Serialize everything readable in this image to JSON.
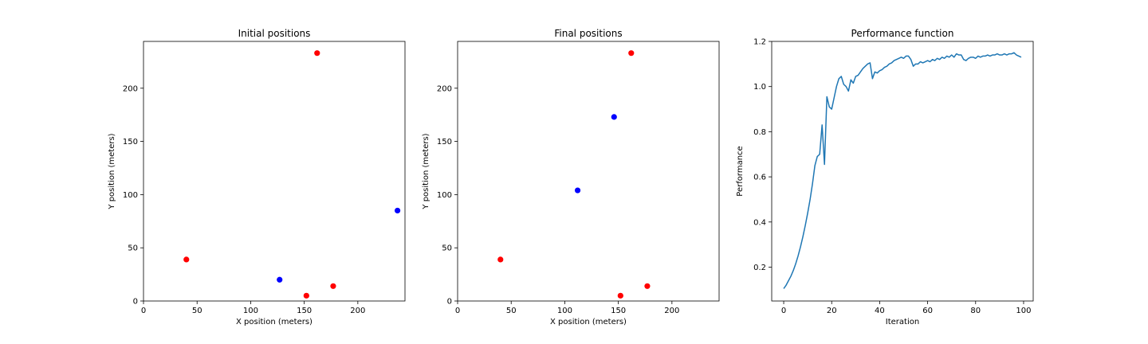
{
  "chart_data": [
    {
      "type": "scatter",
      "title": "Initial positions",
      "xlabel": "X position (meters)",
      "ylabel": "Y position (meters)",
      "xlim": [
        0,
        244
      ],
      "ylim": [
        0,
        244
      ],
      "xticks": [
        0,
        50,
        100,
        150,
        200
      ],
      "yticks": [
        0,
        50,
        100,
        150,
        200
      ],
      "grid": false,
      "series": [
        {
          "color": "#ff0000",
          "points": [
            [
              40,
              39
            ],
            [
              162,
              233
            ],
            [
              152,
              5
            ],
            [
              177,
              14
            ]
          ]
        },
        {
          "color": "#0000ff",
          "points": [
            [
              127,
              20
            ],
            [
              237,
              85
            ]
          ]
        }
      ]
    },
    {
      "type": "scatter",
      "title": "Final positions",
      "xlabel": "X position (meters)",
      "ylabel": "Y position (meters)",
      "xlim": [
        0,
        244
      ],
      "ylim": [
        0,
        244
      ],
      "xticks": [
        0,
        50,
        100,
        150,
        200
      ],
      "yticks": [
        0,
        50,
        100,
        150,
        200
      ],
      "grid": false,
      "series": [
        {
          "color": "#ff0000",
          "points": [
            [
              40,
              39
            ],
            [
              162,
              233
            ],
            [
              152,
              5
            ],
            [
              177,
              14
            ]
          ]
        },
        {
          "color": "#0000ff",
          "points": [
            [
              112,
              104
            ],
            [
              146,
              173
            ]
          ]
        }
      ]
    },
    {
      "type": "line",
      "title": "Performance function",
      "xlabel": "Iteration",
      "ylabel": "Performance",
      "xlim": [
        -5,
        104
      ],
      "ylim": [
        0.05,
        1.2
      ],
      "xticks": [
        0,
        20,
        40,
        60,
        80,
        100
      ],
      "yticks": [
        0.2,
        0.4,
        0.6,
        0.8,
        1.0,
        1.2
      ],
      "ytick_format": 1,
      "grid": false,
      "series": [
        {
          "color": "#1f77b4",
          "x": [
            0,
            1,
            2,
            3,
            4,
            5,
            6,
            7,
            8,
            9,
            10,
            11,
            12,
            13,
            14,
            15,
            16,
            17,
            18,
            19,
            20,
            21,
            22,
            23,
            24,
            25,
            26,
            27,
            28,
            29,
            30,
            31,
            32,
            33,
            34,
            35,
            36,
            37,
            38,
            39,
            40,
            41,
            42,
            43,
            44,
            45,
            46,
            47,
            48,
            49,
            50,
            51,
            52,
            53,
            54,
            55,
            56,
            57,
            58,
            59,
            60,
            61,
            62,
            63,
            64,
            65,
            66,
            67,
            68,
            69,
            70,
            71,
            72,
            73,
            74,
            75,
            76,
            77,
            78,
            79,
            80,
            81,
            82,
            83,
            84,
            85,
            86,
            87,
            88,
            89,
            90,
            91,
            92,
            93,
            94,
            95,
            96,
            97,
            98,
            99
          ],
          "y": [
            0.105,
            0.12,
            0.14,
            0.16,
            0.185,
            0.215,
            0.25,
            0.29,
            0.335,
            0.385,
            0.44,
            0.5,
            0.57,
            0.65,
            0.69,
            0.7,
            0.83,
            0.655,
            0.955,
            0.91,
            0.9,
            0.95,
            1.0,
            1.035,
            1.045,
            1.01,
            1.0,
            0.98,
            1.03,
            1.015,
            1.045,
            1.05,
            1.065,
            1.08,
            1.09,
            1.1,
            1.105,
            1.035,
            1.065,
            1.06,
            1.07,
            1.075,
            1.085,
            1.09,
            1.1,
            1.105,
            1.115,
            1.12,
            1.125,
            1.13,
            1.125,
            1.135,
            1.135,
            1.12,
            1.09,
            1.1,
            1.1,
            1.11,
            1.105,
            1.11,
            1.115,
            1.11,
            1.12,
            1.115,
            1.125,
            1.12,
            1.13,
            1.125,
            1.135,
            1.13,
            1.14,
            1.13,
            1.145,
            1.14,
            1.14,
            1.12,
            1.115,
            1.125,
            1.13,
            1.13,
            1.125,
            1.135,
            1.13,
            1.135,
            1.135,
            1.14,
            1.135,
            1.14,
            1.14,
            1.145,
            1.14,
            1.14,
            1.145,
            1.14,
            1.145,
            1.145,
            1.15,
            1.14,
            1.135,
            1.13
          ]
        }
      ]
    }
  ]
}
